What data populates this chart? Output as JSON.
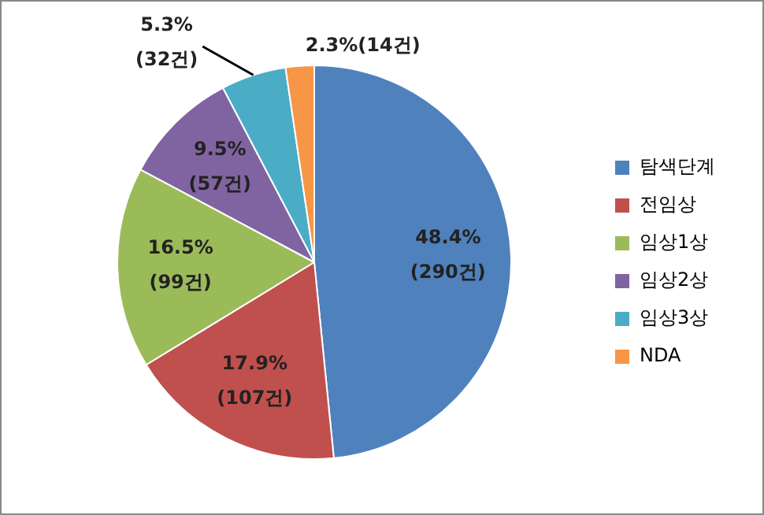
{
  "chart_data": {
    "type": "pie",
    "categories": [
      "탐색단계",
      "전임상",
      "임상1상",
      "임상2상",
      "임상3상",
      "NDA"
    ],
    "values": [
      290,
      107,
      99,
      57,
      32,
      14
    ],
    "colors": [
      "#4f81bd",
      "#c0504d",
      "#9bbb59",
      "#8064a2",
      "#4bacc6",
      "#f79646"
    ],
    "value_labels": [
      "48.4%\n(290건)",
      "17.9%\n(107건)",
      "16.5%\n(99건)",
      "9.5%\n(57건)",
      "5.3%\n(32건)",
      "2.3%(14건)"
    ],
    "legend": "right"
  }
}
